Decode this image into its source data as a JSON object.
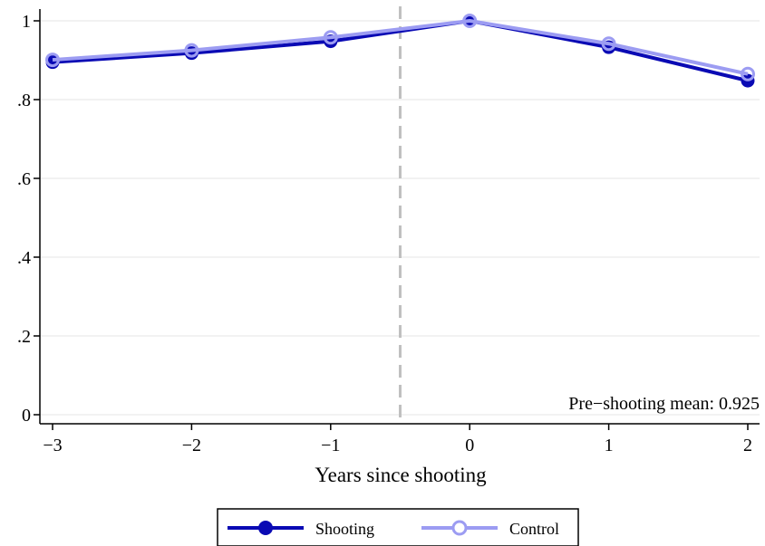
{
  "chart_data": {
    "type": "line",
    "title": "",
    "xlabel": "Years since shooting",
    "ylabel": "",
    "x": [
      -3,
      -2,
      -1,
      0,
      1,
      2
    ],
    "x_tick_labels": [
      "−3",
      "−2",
      "−1",
      "0",
      "1",
      "2"
    ],
    "y_tick_labels": [
      "0",
      ".2",
      ".4",
      ".6",
      ".8",
      "1"
    ],
    "y_ticks": [
      0,
      0.2,
      0.4,
      0.6,
      0.8,
      1
    ],
    "xlim": [
      -3,
      2
    ],
    "ylim": [
      0,
      1
    ],
    "grid": true,
    "event_line_x": -0.5,
    "annotation": "Pre−shooting mean: 0.925",
    "legend_position": "bottom",
    "series": [
      {
        "name": "Shooting",
        "values": [
          0.895,
          0.918,
          0.948,
          1.0,
          0.933,
          0.848
        ],
        "color": "#0a0ab4",
        "marker": "filled-circle"
      },
      {
        "name": "Control",
        "values": [
          0.901,
          0.925,
          0.958,
          1.0,
          0.942,
          0.865
        ],
        "color": "#9c9cf2",
        "marker": "hollow-circle"
      }
    ]
  }
}
